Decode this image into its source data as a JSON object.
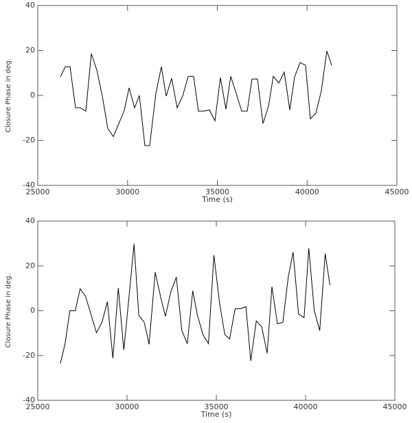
{
  "chart_data": [
    {
      "type": "line",
      "xlabel": "Time (s)",
      "ylabel": "Closure Phase in deg.",
      "color": "#000000",
      "x": [
        26262,
        26530,
        26797,
        27103,
        27371,
        27677,
        27983,
        28289,
        28595,
        28900,
        29206,
        29512,
        29818,
        30086,
        30392,
        30660,
        30965,
        31233,
        31577,
        31883,
        32151,
        32457,
        32763,
        33069,
        33375,
        33681,
        33948,
        34254,
        34560,
        34866,
        35172,
        35478,
        35746,
        36052,
        36358,
        36663,
        36931,
        37237,
        37543,
        37849,
        38117,
        38423,
        38728,
        39034,
        39302,
        39608,
        39914,
        40182,
        40488,
        40793,
        41099,
        41367
      ],
      "values": [
        8.2,
        12.8,
        12.8,
        -5.5,
        -5.5,
        -7,
        18.6,
        11.3,
        -0.3,
        -14.7,
        -18.3,
        -12.5,
        -6.7,
        3.4,
        -5.5,
        0,
        -22.3,
        -22.3,
        0.9,
        12.8,
        -0.3,
        7.6,
        -5.5,
        -0.3,
        8.5,
        8.5,
        -7,
        -7,
        -6.4,
        -11.3,
        7.9,
        -6.1,
        8.5,
        0.9,
        -7,
        -7,
        7.3,
        7.3,
        -12.5,
        -4.9,
        8.5,
        5.5,
        10.4,
        -6.4,
        8.2,
        14.7,
        13.4,
        -10.4,
        -7.9,
        2.1,
        19.8,
        13.4
      ],
      "xlim": [
        25000,
        45000
      ],
      "xticks": [
        25000,
        30000,
        35000,
        40000,
        45000
      ],
      "ylim": [
        -40,
        40
      ],
      "yticks": [
        -40,
        -20,
        0,
        20,
        40
      ]
    },
    {
      "type": "line",
      "xlabel": "Time (s)",
      "ylabel": "Closure Phase in deg.",
      "color": "#000000",
      "x": [
        26262,
        26530,
        26797,
        27103,
        27371,
        27677,
        27983,
        28289,
        28595,
        28900,
        29206,
        29512,
        29818,
        30086,
        30392,
        30660,
        30965,
        31233,
        31577,
        31883,
        32151,
        32457,
        32763,
        33069,
        33375,
        33681,
        33948,
        34254,
        34560,
        34866,
        35172,
        35478,
        35746,
        36052,
        36358,
        36663,
        36931,
        37237,
        37543,
        37849,
        38117,
        38423,
        38728,
        39034,
        39302,
        39608,
        39914,
        40182,
        40488,
        40793,
        41099,
        41367
      ],
      "values": [
        -23.6,
        -14.7,
        0,
        0,
        9.8,
        6.4,
        -1.8,
        -9.8,
        -5.2,
        4,
        -21.2,
        10.1,
        -17.5,
        4,
        29.8,
        -2.1,
        -5.2,
        -15,
        17.2,
        6.1,
        -2.5,
        8.6,
        15,
        -8.9,
        -14.7,
        8.9,
        -2.1,
        -10.7,
        -14.7,
        24.8,
        4,
        -10.7,
        -12.6,
        0.9,
        0.9,
        1.8,
        -22.4,
        -4.6,
        -7.1,
        -19,
        10.7,
        -5.8,
        -5.2,
        15.3,
        26.1,
        -1.5,
        -3.1,
        27.9,
        0,
        -8.9,
        25.5,
        11.3
      ],
      "xlim": [
        25000,
        45000
      ],
      "xticks": [
        25000,
        30000,
        35000,
        40000,
        45000
      ],
      "ylim": [
        -40,
        40
      ],
      "yticks": [
        -40,
        -20,
        0,
        20,
        40
      ]
    }
  ]
}
